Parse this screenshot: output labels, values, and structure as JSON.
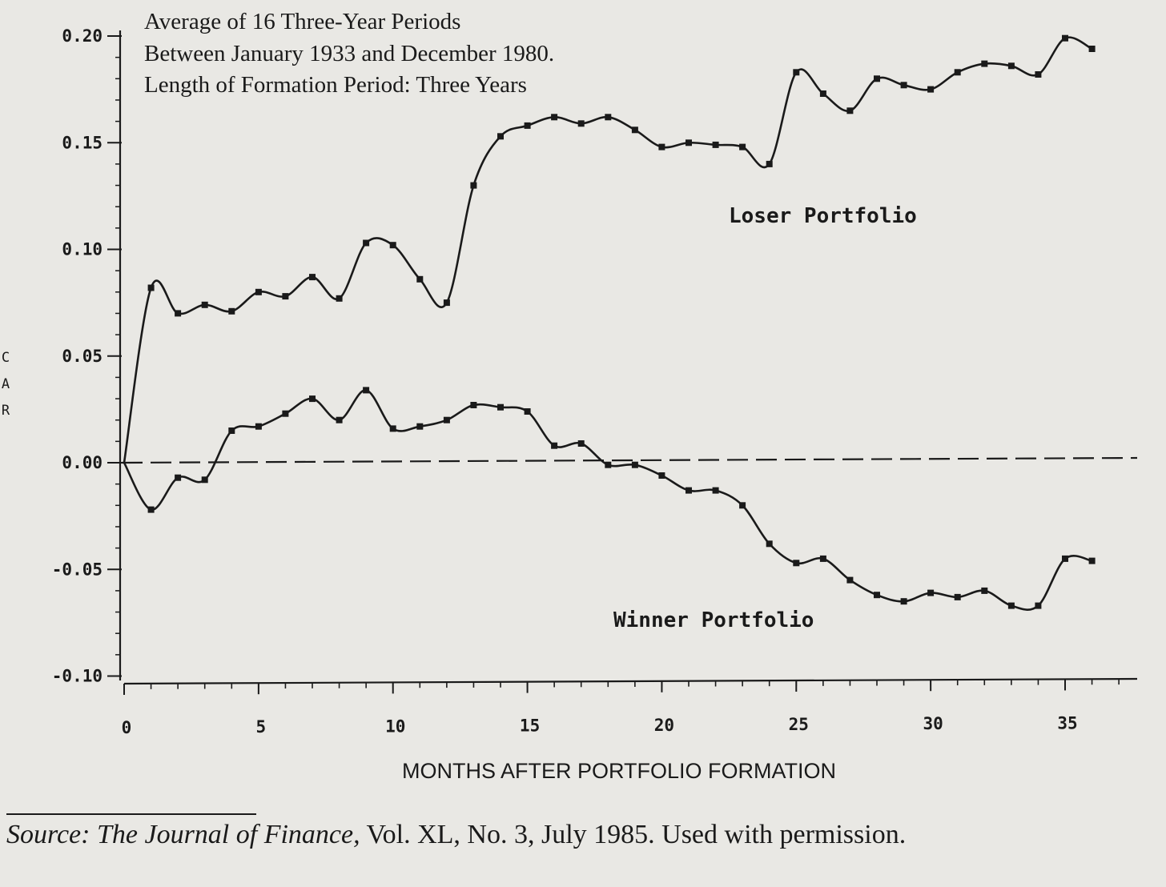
{
  "chart_data": {
    "type": "line",
    "title_lines": [
      "Average of 16 Three-Year Periods",
      "Between January 1933 and December 1980.",
      "Length of Formation Period: Three Years"
    ],
    "xlabel": "MONTHS AFTER PORTFOLIO FORMATION",
    "ylabel": "C A R",
    "xlim": [
      0,
      37
    ],
    "ylim": [
      -0.1,
      0.2
    ],
    "x_ticks": [
      0,
      5,
      10,
      15,
      20,
      25,
      30,
      35
    ],
    "y_ticks": [
      "0.20",
      "0.15",
      "0.10",
      "0.05",
      "0.00",
      "-0.05",
      "-0.10"
    ],
    "zero_line": "dashed",
    "series": [
      {
        "name": "Loser Portfolio",
        "x": [
          0,
          1,
          2,
          3,
          4,
          5,
          6,
          7,
          8,
          9,
          10,
          11,
          12,
          13,
          14,
          15,
          16,
          17,
          18,
          19,
          20,
          21,
          22,
          23,
          24,
          25,
          26,
          27,
          28,
          29,
          30,
          31,
          32,
          33,
          34,
          35,
          36
        ],
        "values": [
          0.0,
          0.082,
          0.07,
          0.074,
          0.071,
          0.08,
          0.078,
          0.087,
          0.077,
          0.103,
          0.102,
          0.086,
          0.075,
          0.13,
          0.153,
          0.158,
          0.162,
          0.159,
          0.162,
          0.156,
          0.148,
          0.15,
          0.149,
          0.148,
          0.14,
          0.183,
          0.173,
          0.165,
          0.18,
          0.177,
          0.175,
          0.183,
          0.187,
          0.186,
          0.182,
          0.199,
          0.194
        ]
      },
      {
        "name": "Winner Portfolio",
        "x": [
          0,
          1,
          2,
          3,
          4,
          5,
          6,
          7,
          8,
          9,
          10,
          11,
          12,
          13,
          14,
          15,
          16,
          17,
          18,
          19,
          20,
          21,
          22,
          23,
          24,
          25,
          26,
          27,
          28,
          29,
          30,
          31,
          32,
          33,
          34,
          35,
          36
        ],
        "values": [
          0.0,
          -0.022,
          -0.007,
          -0.008,
          0.015,
          0.017,
          0.023,
          0.03,
          0.02,
          0.034,
          0.016,
          0.017,
          0.02,
          0.027,
          0.026,
          0.024,
          0.008,
          0.009,
          -0.001,
          -0.001,
          -0.006,
          -0.013,
          -0.013,
          -0.02,
          -0.038,
          -0.047,
          -0.045,
          -0.055,
          -0.062,
          -0.065,
          -0.061,
          -0.063,
          -0.06,
          -0.067,
          -0.067,
          -0.045,
          -0.046
        ]
      }
    ]
  },
  "source": {
    "italic": "Source: The Journal of Finance,",
    "rest": " Vol. XL, No. 3, July 1985. Used with permission."
  }
}
